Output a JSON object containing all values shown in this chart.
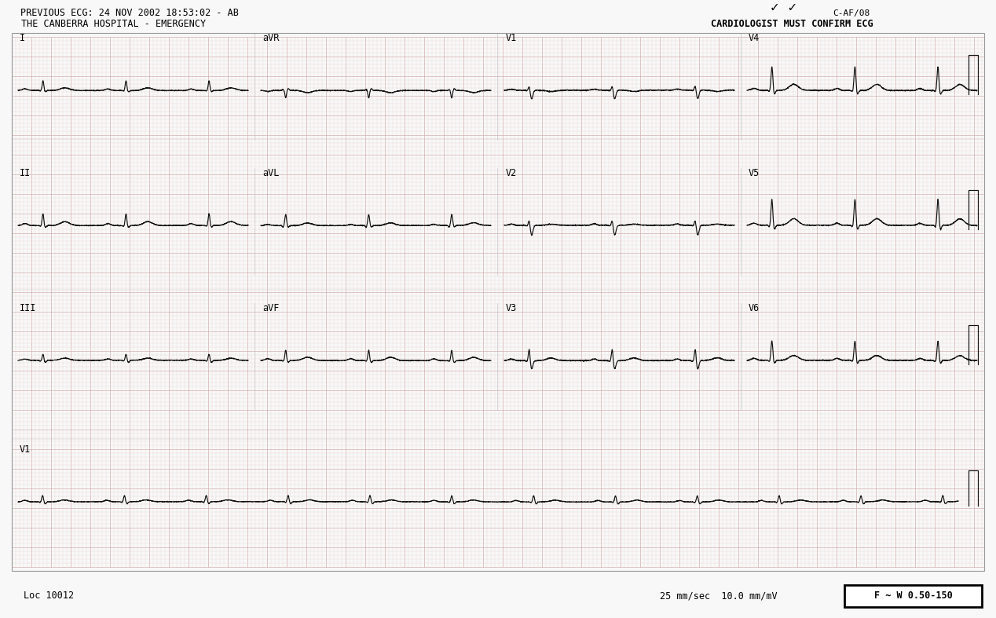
{
  "paper_color": "#f8f8f8",
  "grid_major_color": "#d4b0b0",
  "grid_minor_color": "#e8d0d0",
  "ecg_color": "#111111",
  "header_left_line1": "PREVIOUS ECG: 24 NOV 2002 18:53:02 - AB",
  "header_left_line2": "THE CANBERRA HOSPITAL - EMERGENCY",
  "header_right_top": "C-AF/08",
  "header_right_bottom": "CARDIOLOGIST MUST CONFIRM ECG",
  "footer_left": "Loc 10012",
  "footer_center": "25 mm/sec  10.0 mm/mV",
  "footer_box": "F ~ W 0.50-150",
  "row_labels": [
    [
      "I",
      "aVR",
      "V1",
      "V4"
    ],
    [
      "II",
      "aVL",
      "V2",
      "V5"
    ],
    [
      "III",
      "aVF",
      "V3",
      "V6"
    ],
    [
      "V1"
    ]
  ]
}
